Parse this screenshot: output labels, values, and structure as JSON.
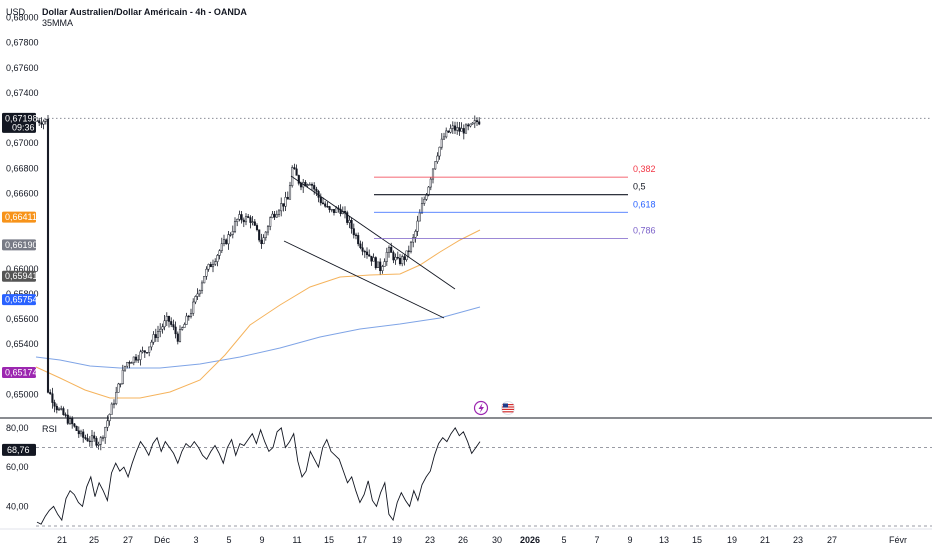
{
  "header": {
    "currency_label": "USD",
    "title": "Dollar Australien/Dollar Américain - 4h - OANDA",
    "indicator_label": "35MMA"
  },
  "price_axis": {
    "ticks": [
      "0,68000",
      "0,67800",
      "0,67600",
      "0,67400",
      "0,67000",
      "0,66800",
      "0,66600",
      "0,66000",
      "0,65800",
      "0,65600",
      "0,65400",
      "0,65000"
    ],
    "tick_values": [
      0.68,
      0.678,
      0.676,
      0.674,
      0.67,
      0.668,
      0.666,
      0.66,
      0.658,
      0.656,
      0.654,
      0.65
    ],
    "range": [
      0.6482,
      0.6814
    ]
  },
  "price_tags": [
    {
      "value": 0.67198,
      "text": "0,67198",
      "subtext": "09:36",
      "color": "#131722"
    },
    {
      "value": 0.66411,
      "text": "0,66411",
      "color": "#f7931a"
    },
    {
      "value": 0.6619,
      "text": "0,66190",
      "color": "#787b86"
    },
    {
      "value": 0.65941,
      "text": "0,65941",
      "color": "#555555"
    },
    {
      "value": 0.65754,
      "text": "0,65754",
      "color": "#2962ff"
    },
    {
      "value": 0.65174,
      "text": "0,65174",
      "color": "#9c27b0"
    }
  ],
  "fib_levels": [
    {
      "label": "0,382",
      "value": 0.6673,
      "color": "#f23645"
    },
    {
      "label": "0,5",
      "value": 0.6659,
      "color": "#131722"
    },
    {
      "label": "0,618",
      "value": 0.6645,
      "color": "#2962ff"
    },
    {
      "label": "0,786",
      "value": 0.6624,
      "color": "#7b61c9"
    }
  ],
  "rsi": {
    "label": "RSI",
    "current": "68,76",
    "current_value": 68.76,
    "ticks": [
      "80,00",
      "60,00",
      "40,00"
    ],
    "tick_values": [
      80,
      60,
      40
    ],
    "range": [
      29,
      84
    ],
    "levels": [
      70,
      30
    ],
    "values": [
      32,
      31,
      35,
      38,
      40,
      36,
      33,
      44,
      48,
      46,
      42,
      40,
      50,
      55,
      45,
      52,
      48,
      43,
      57,
      62,
      58,
      60,
      55,
      62,
      68,
      73,
      70,
      66,
      72,
      75,
      68,
      73,
      70,
      67,
      62,
      68,
      72,
      70,
      73,
      70,
      66,
      64,
      68,
      71,
      67,
      62,
      70,
      74,
      66,
      72,
      71,
      74,
      77,
      72,
      79,
      73,
      68,
      70,
      78,
      80,
      70,
      73,
      77,
      63,
      55,
      58,
      68,
      64,
      60,
      70,
      74,
      68,
      66,
      64,
      58,
      52,
      55,
      48,
      42,
      46,
      53,
      43,
      40,
      47,
      52,
      36,
      33,
      42,
      47,
      43,
      40,
      48,
      43,
      51,
      55,
      58,
      66,
      72,
      75,
      73,
      77,
      80,
      76,
      78,
      73,
      67,
      70,
      73
    ]
  },
  "time_axis": {
    "labels": [
      "21",
      "25",
      "27",
      "Déc",
      "3",
      "5",
      "9",
      "11",
      "15",
      "17",
      "19",
      "23",
      "26",
      "30",
      "2026",
      "5",
      "7",
      "9",
      "13",
      "15",
      "19",
      "21",
      "23",
      "27",
      "Févr"
    ],
    "bold": [
      "2026"
    ]
  },
  "colors": {
    "bull": "#131722",
    "bear": "#131722",
    "mma35": "#f5b35c",
    "slow_ma": "#7fa4e6",
    "channel": "#131722",
    "grid_dashed": "#787b86"
  },
  "icons": [
    "lightning-icon",
    "us-flag-icon"
  ],
  "chart_data": {
    "type": "candlestick",
    "title": "Dollar Australien/Dollar Américain - 4h - OANDA",
    "ylim": [
      0.6482,
      0.6814
    ],
    "series": [
      {
        "name": "35MMA"
      }
    ]
  }
}
